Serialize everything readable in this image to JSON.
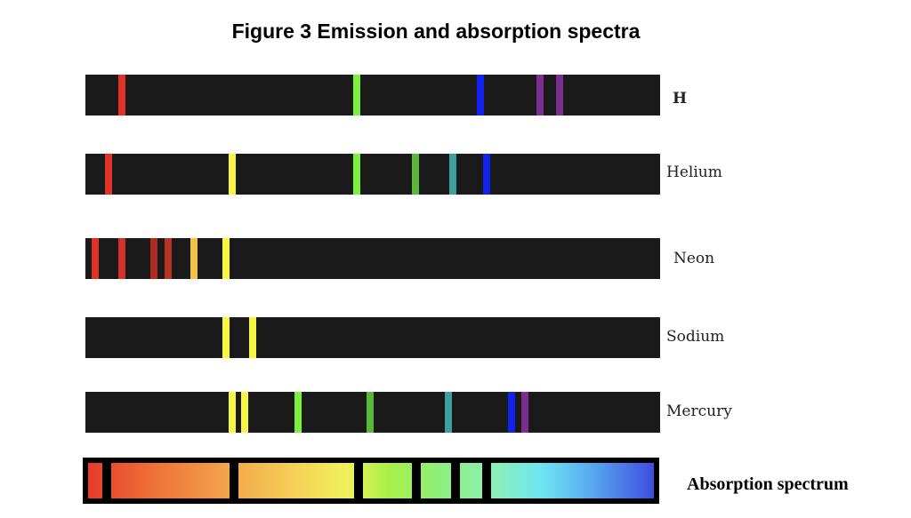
{
  "title": "Figure 3  Emission and absorption spectra",
  "spectra": [
    {
      "label": "H",
      "lines": [
        {
          "pos": 0.063,
          "color": "#e03325"
        },
        {
          "pos": 0.472,
          "color": "#7cf03a"
        },
        {
          "pos": 0.687,
          "color": "#1222ee"
        },
        {
          "pos": 0.791,
          "color": "#7a2e8e"
        },
        {
          "pos": 0.825,
          "color": "#7a2e8e"
        }
      ]
    },
    {
      "label": "Helium",
      "lines": [
        {
          "pos": 0.04,
          "color": "#e03325"
        },
        {
          "pos": 0.256,
          "color": "#f5f542"
        },
        {
          "pos": 0.472,
          "color": "#7cf03a"
        },
        {
          "pos": 0.574,
          "color": "#5cb83a"
        },
        {
          "pos": 0.64,
          "color": "#3f9f9f"
        },
        {
          "pos": 0.698,
          "color": "#1222ee"
        }
      ]
    },
    {
      "label": "Neon",
      "lines": [
        {
          "pos": 0.017,
          "color": "#e03325"
        },
        {
          "pos": 0.063,
          "color": "#d4302a"
        },
        {
          "pos": 0.119,
          "color": "#b02a22"
        },
        {
          "pos": 0.144,
          "color": "#b83225"
        },
        {
          "pos": 0.189,
          "color": "#f2c24a"
        },
        {
          "pos": 0.245,
          "color": "#f5f542"
        }
      ]
    },
    {
      "label": "Sodium",
      "lines": [
        {
          "pos": 0.245,
          "color": "#f5f542"
        },
        {
          "pos": 0.291,
          "color": "#f5f542"
        }
      ]
    },
    {
      "label": "Mercury",
      "lines": [
        {
          "pos": 0.256,
          "color": "#f5f542"
        },
        {
          "pos": 0.277,
          "color": "#f5f542"
        },
        {
          "pos": 0.37,
          "color": "#7cf03a"
        },
        {
          "pos": 0.495,
          "color": "#5cb83a"
        },
        {
          "pos": 0.631,
          "color": "#3f9f9f"
        },
        {
          "pos": 0.741,
          "color": "#1222ee"
        },
        {
          "pos": 0.764,
          "color": "#7a2e8e"
        }
      ]
    }
  ],
  "absorption": {
    "label": "Absorption spectrum",
    "gaps": [
      0.033,
      0.256,
      0.473,
      0.575,
      0.643,
      0.698
    ]
  }
}
